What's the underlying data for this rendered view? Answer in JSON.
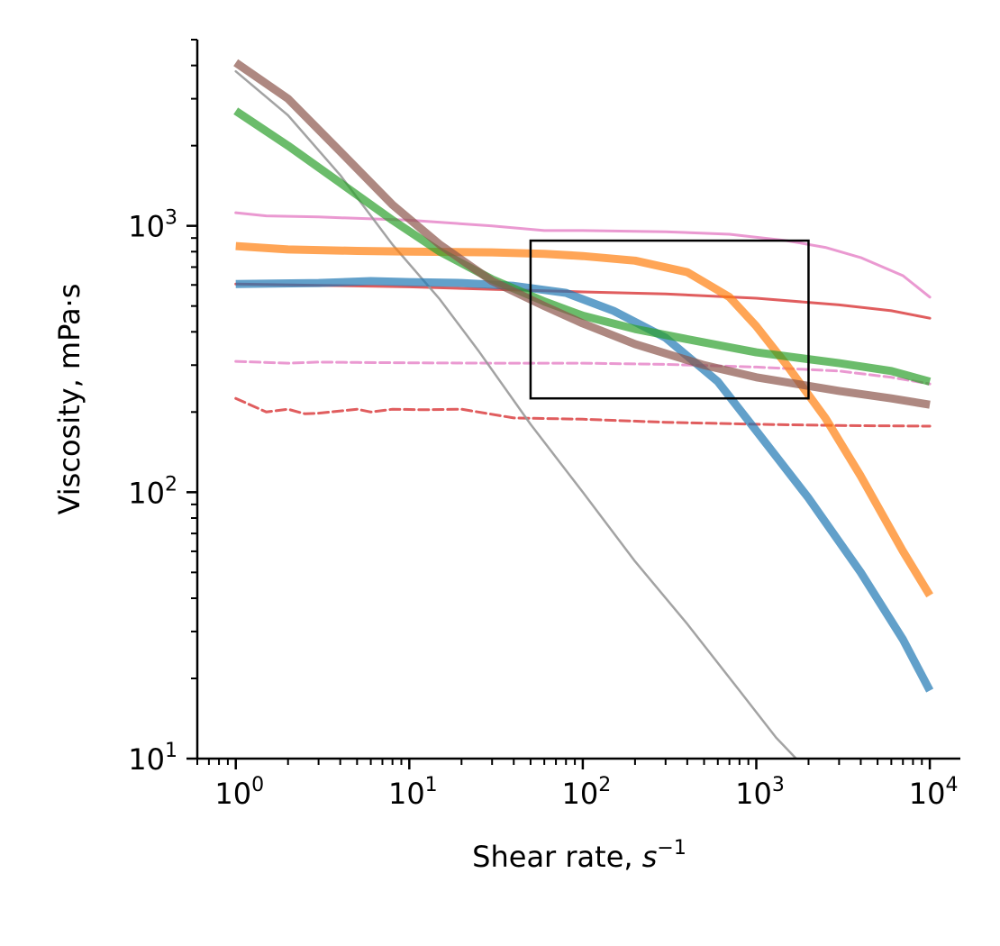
{
  "chart_data": {
    "type": "line",
    "title": "",
    "xlabel": {
      "text": "Shear rate, ",
      "unit_var": "s",
      "unit_exp": "−1"
    },
    "ylabel": "Viscosity, mPa·s",
    "xscale": "log",
    "yscale": "log",
    "xlim": [
      0.6,
      15000
    ],
    "ylim": [
      10,
      5000
    ],
    "x_major_ticks": [
      {
        "value": 1,
        "base": "10",
        "exp": "0"
      },
      {
        "value": 10,
        "base": "10",
        "exp": "1"
      },
      {
        "value": 100,
        "base": "10",
        "exp": "2"
      },
      {
        "value": 1000,
        "base": "10",
        "exp": "3"
      },
      {
        "value": 10000,
        "base": "10",
        "exp": "4"
      }
    ],
    "y_major_ticks": [
      {
        "value": 10,
        "base": "10",
        "exp": "1"
      },
      {
        "value": 100,
        "base": "10",
        "exp": "2"
      },
      {
        "value": 1000,
        "base": "10",
        "exp": "3"
      }
    ],
    "grid": false,
    "legend": "none",
    "highlight_box": {
      "x": [
        50,
        2000
      ],
      "y": [
        225,
        880
      ]
    },
    "series": [
      {
        "name": "pink-solid-thin",
        "color": "#e377c2",
        "style": "solid",
        "weight": "thin",
        "alpha": 0.75,
        "points": [
          [
            1,
            1120
          ],
          [
            1.5,
            1090
          ],
          [
            3,
            1080
          ],
          [
            10,
            1050
          ],
          [
            30,
            1000
          ],
          [
            60,
            960
          ],
          [
            100,
            960
          ],
          [
            300,
            950
          ],
          [
            700,
            930
          ],
          [
            1500,
            880
          ],
          [
            2500,
            830
          ],
          [
            4000,
            760
          ],
          [
            7000,
            650
          ],
          [
            10000,
            540
          ]
        ]
      },
      {
        "name": "red-solid-thin",
        "color": "#d62728",
        "style": "solid",
        "weight": "thin",
        "alpha": 0.75,
        "points": [
          [
            1,
            605
          ],
          [
            3,
            598
          ],
          [
            10,
            590
          ],
          [
            30,
            578
          ],
          [
            100,
            565
          ],
          [
            300,
            555
          ],
          [
            1000,
            535
          ],
          [
            3000,
            505
          ],
          [
            6000,
            480
          ],
          [
            10000,
            450
          ]
        ]
      },
      {
        "name": "pink-dashed",
        "color": "#e377c2",
        "style": "dashed",
        "weight": "thin",
        "alpha": 0.75,
        "points": [
          [
            1,
            310
          ],
          [
            2,
            305
          ],
          [
            3,
            308
          ],
          [
            5,
            307
          ],
          [
            10,
            306
          ],
          [
            30,
            305
          ],
          [
            100,
            305
          ],
          [
            300,
            302
          ],
          [
            1000,
            295
          ],
          [
            3000,
            285
          ],
          [
            6000,
            270
          ],
          [
            10000,
            255
          ]
        ]
      },
      {
        "name": "red-dashed",
        "color": "#d62728",
        "style": "dashed",
        "weight": "thin",
        "alpha": 0.75,
        "points": [
          [
            1,
            225
          ],
          [
            1.5,
            200
          ],
          [
            2,
            205
          ],
          [
            2.5,
            197
          ],
          [
            3,
            198
          ],
          [
            5,
            205
          ],
          [
            6,
            200
          ],
          [
            8,
            205
          ],
          [
            12,
            204
          ],
          [
            20,
            205
          ],
          [
            40,
            190
          ],
          [
            100,
            188
          ],
          [
            300,
            183
          ],
          [
            1000,
            180
          ],
          [
            3000,
            178
          ],
          [
            10000,
            177
          ]
        ]
      },
      {
        "name": "gray-solid",
        "color": "#999999",
        "style": "solid",
        "weight": "thin",
        "alpha": 0.9,
        "points": [
          [
            1,
            3800
          ],
          [
            2,
            2600
          ],
          [
            4,
            1550
          ],
          [
            8,
            850
          ],
          [
            15,
            530
          ],
          [
            25,
            340
          ],
          [
            50,
            180
          ],
          [
            100,
            100
          ],
          [
            200,
            55
          ],
          [
            400,
            32
          ],
          [
            800,
            18
          ],
          [
            1300,
            12
          ],
          [
            1800,
            9.6
          ]
        ]
      },
      {
        "name": "blue-thick",
        "color": "#1f77b4",
        "style": "solid",
        "weight": "thick",
        "alpha": 0.7,
        "points": [
          [
            1,
            605
          ],
          [
            3,
            610
          ],
          [
            6,
            620
          ],
          [
            10,
            615
          ],
          [
            20,
            610
          ],
          [
            40,
            595
          ],
          [
            80,
            560
          ],
          [
            150,
            480
          ],
          [
            300,
            380
          ],
          [
            600,
            260
          ],
          [
            1000,
            170
          ],
          [
            2000,
            95
          ],
          [
            4000,
            50
          ],
          [
            7000,
            28
          ],
          [
            10000,
            18
          ]
        ]
      },
      {
        "name": "orange-thick",
        "color": "#ff7f0e",
        "style": "solid",
        "weight": "thick",
        "alpha": 0.7,
        "points": [
          [
            1,
            840
          ],
          [
            2,
            815
          ],
          [
            5,
            805
          ],
          [
            10,
            800
          ],
          [
            30,
            795
          ],
          [
            60,
            785
          ],
          [
            100,
            770
          ],
          [
            200,
            740
          ],
          [
            400,
            670
          ],
          [
            700,
            540
          ],
          [
            1000,
            420
          ],
          [
            1500,
            300
          ],
          [
            2500,
            190
          ],
          [
            4000,
            115
          ],
          [
            7000,
            60
          ],
          [
            10000,
            41
          ]
        ]
      },
      {
        "name": "green-thick",
        "color": "#2ca02c",
        "style": "solid",
        "weight": "thick",
        "alpha": 0.7,
        "points": [
          [
            1,
            2700
          ],
          [
            2,
            2000
          ],
          [
            4,
            1450
          ],
          [
            8,
            1050
          ],
          [
            15,
            800
          ],
          [
            30,
            630
          ],
          [
            60,
            520
          ],
          [
            100,
            460
          ],
          [
            200,
            410
          ],
          [
            500,
            365
          ],
          [
            1000,
            335
          ],
          [
            3000,
            305
          ],
          [
            6000,
            285
          ],
          [
            10000,
            260
          ]
        ]
      },
      {
        "name": "brown-thick",
        "color": "#8c564b",
        "style": "solid",
        "weight": "thick",
        "alpha": 0.7,
        "points": [
          [
            1,
            4100
          ],
          [
            2,
            3000
          ],
          [
            4,
            1900
          ],
          [
            8,
            1200
          ],
          [
            15,
            850
          ],
          [
            30,
            620
          ],
          [
            60,
            500
          ],
          [
            100,
            430
          ],
          [
            200,
            360
          ],
          [
            500,
            300
          ],
          [
            1000,
            270
          ],
          [
            3000,
            240
          ],
          [
            6000,
            225
          ],
          [
            10000,
            213
          ]
        ]
      }
    ]
  }
}
